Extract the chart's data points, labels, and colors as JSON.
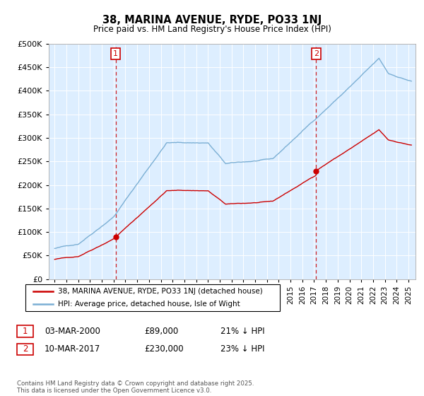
{
  "title": "38, MARINA AVENUE, RYDE, PO33 1NJ",
  "subtitle": "Price paid vs. HM Land Registry's House Price Index (HPI)",
  "legend_label_red": "38, MARINA AVENUE, RYDE, PO33 1NJ (detached house)",
  "legend_label_blue": "HPI: Average price, detached house, Isle of Wight",
  "annotation1_date": "03-MAR-2000",
  "annotation1_price": "£89,000",
  "annotation1_hpi": "21% ↓ HPI",
  "annotation2_date": "10-MAR-2017",
  "annotation2_price": "£230,000",
  "annotation2_hpi": "23% ↓ HPI",
  "footer": "Contains HM Land Registry data © Crown copyright and database right 2025.\nThis data is licensed under the Open Government Licence v3.0.",
  "red_color": "#cc0000",
  "blue_color": "#7bafd4",
  "dashed_color": "#cc0000",
  "bg_color": "#ddeeff",
  "annotation_box_color": "#cc0000",
  "ylim": [
    0,
    500000
  ],
  "yticks": [
    0,
    50000,
    100000,
    150000,
    200000,
    250000,
    300000,
    350000,
    400000,
    450000,
    500000
  ],
  "sale1_t": 2000.167,
  "sale1_price": 89000,
  "sale2_t": 2017.167,
  "sale2_price": 230000
}
